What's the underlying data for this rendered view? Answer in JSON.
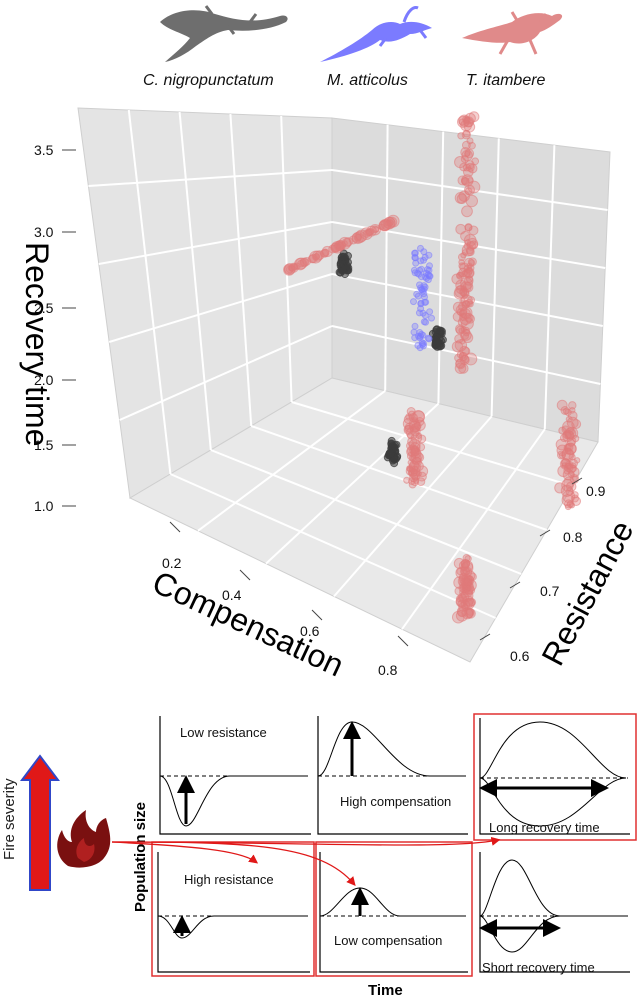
{
  "legend": {
    "species": [
      {
        "name": "C. nigropunctatum",
        "color": "#6e6e6e"
      },
      {
        "name": "M. atticolus",
        "color": "#7b7bff"
      },
      {
        "name": "T. itambere",
        "color": "#e07a7a"
      }
    ]
  },
  "chart_data": {
    "type": "scatter",
    "subtype": "3d-scatter",
    "axes": {
      "z": {
        "label": "Recovery time",
        "ticks": [
          "1.0",
          "1.5",
          "2.0",
          "2.5",
          "3.0",
          "3.5"
        ],
        "range": [
          1.0,
          3.5
        ]
      },
      "x": {
        "label": "Compensation",
        "ticks": [
          "0.2",
          "0.4",
          "0.6",
          "0.8"
        ],
        "range": [
          0.1,
          0.9
        ]
      },
      "y": {
        "label": "Resistance",
        "ticks": [
          "0.6",
          "0.7",
          "0.8",
          "0.9"
        ],
        "range": [
          0.55,
          0.95
        ]
      }
    },
    "grid": true,
    "series": [
      {
        "name": "C. nigropunctatum",
        "color": "#3c3c3c",
        "clusters": [
          {
            "compensation": 0.3,
            "resistance": 0.82,
            "recovery": 2.35
          },
          {
            "compensation": 0.52,
            "resistance": 0.82,
            "recovery": 2.15
          },
          {
            "compensation": 0.55,
            "resistance": 0.7,
            "recovery": 1.65
          }
        ]
      },
      {
        "name": "M. atticolus",
        "color": "#7b7bff",
        "clusters": [
          {
            "compensation": 0.45,
            "resistance": 0.85,
            "recovery_min": 1.9,
            "recovery_max": 2.6
          }
        ]
      },
      {
        "name": "T. itambere",
        "color": "#e07a7a",
        "clusters": [
          {
            "compensation_from": 0.1,
            "compensation_to": 0.35,
            "resistance": 0.88,
            "recovery_from": 1.9,
            "recovery_to": 2.6
          },
          {
            "compensation": 0.5,
            "resistance": 0.9,
            "recovery_from": 2.4,
            "recovery_to": 3.5
          },
          {
            "compensation": 0.55,
            "resistance": 0.85,
            "recovery_from": 1.9,
            "recovery_to": 2.6
          },
          {
            "compensation": 0.6,
            "resistance": 0.7,
            "recovery_from": 1.5,
            "recovery_to": 2.0
          },
          {
            "compensation": 0.85,
            "resistance": 0.8,
            "recovery_from": 1.5,
            "recovery_to": 2.2
          },
          {
            "compensation": 0.8,
            "resistance": 0.63,
            "recovery_from": 1.0,
            "recovery_to": 1.4
          }
        ]
      }
    ]
  },
  "schematic": {
    "y_label": "Population size",
    "x_label": "Time",
    "side_label": "Fire severity",
    "panels": [
      {
        "label": "Low resistance"
      },
      {
        "label": "High compensation"
      },
      {
        "label": "Long recovery time"
      },
      {
        "label": "High resistance"
      },
      {
        "label": "Low compensation"
      },
      {
        "label": "Short recovery time"
      }
    ]
  }
}
